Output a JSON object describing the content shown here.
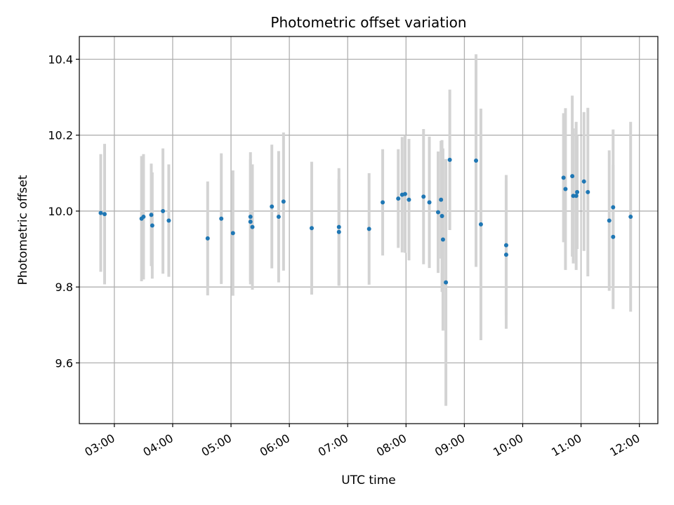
{
  "chart_data": {
    "type": "scatter",
    "title": "Photometric offset variation",
    "xlabel": "UTC time",
    "ylabel": "Photometric offset",
    "grid": true,
    "x_ticks": [
      "03:00",
      "04:00",
      "05:00",
      "06:00",
      "07:00",
      "08:00",
      "09:00",
      "10:00",
      "11:00",
      "12:00"
    ],
    "y_ticks": [
      "9.6",
      "9.8",
      "10.0",
      "10.2",
      "10.4"
    ],
    "xlim": [
      "02:24",
      "12:19"
    ],
    "ylim": [
      9.44,
      10.46
    ],
    "colors": {
      "points": "#1f77b4",
      "errorbars": "#d3d3d3",
      "grid": "#b0b0b0"
    },
    "series": [
      {
        "x": [
          "02:46",
          "02:50",
          "03:28",
          "03:30",
          "03:38",
          "03:39",
          "03:50",
          "03:56",
          "04:36",
          "04:50",
          "05:02",
          "05:20",
          "05:20",
          "05:22",
          "05:42",
          "05:49",
          "05:54",
          "06:23",
          "06:51",
          "06:51",
          "07:22",
          "07:36",
          "07:52",
          "07:56",
          "07:59",
          "08:03",
          "08:18",
          "08:24",
          "08:33",
          "08:36",
          "08:37",
          "08:38",
          "08:41",
          "08:45",
          "09:12",
          "09:17",
          "09:43",
          "09:43",
          "10:42",
          "10:44",
          "10:51",
          "10:52",
          "10:55",
          "10:56",
          "11:03",
          "11:07",
          "11:29",
          "11:33",
          "11:33",
          "11:51"
        ],
        "y": [
          9.995,
          9.992,
          9.98,
          9.985,
          9.99,
          9.962,
          10.0,
          9.975,
          9.928,
          9.98,
          9.942,
          9.985,
          9.972,
          9.958,
          10.012,
          9.985,
          10.025,
          9.955,
          9.958,
          9.945,
          9.953,
          10.023,
          10.033,
          10.043,
          10.045,
          10.03,
          10.038,
          10.023,
          9.997,
          10.03,
          9.987,
          9.925,
          9.812,
          10.135,
          10.133,
          9.965,
          9.91,
          9.885,
          10.088,
          10.058,
          10.092,
          10.04,
          10.04,
          10.05,
          10.078,
          10.05,
          9.975,
          10.01,
          9.932,
          9.985
        ],
        "yerr": [
          0.155,
          0.185,
          0.165,
          0.165,
          0.135,
          0.14,
          0.165,
          0.148,
          0.15,
          0.172,
          0.165,
          0.17,
          0.165,
          0.165,
          0.163,
          0.173,
          0.182,
          0.175,
          0.155,
          0.14,
          0.147,
          0.14,
          0.13,
          0.152,
          0.155,
          0.16,
          0.178,
          0.173,
          0.16,
          0.155,
          0.2,
          0.24,
          0.325,
          0.185,
          0.28,
          0.305,
          0.185,
          0.195,
          0.17,
          0.213,
          0.212,
          0.178,
          0.195,
          0.15,
          0.183,
          0.222,
          0.185,
          0.205,
          0.19,
          0.25
        ]
      }
    ]
  }
}
